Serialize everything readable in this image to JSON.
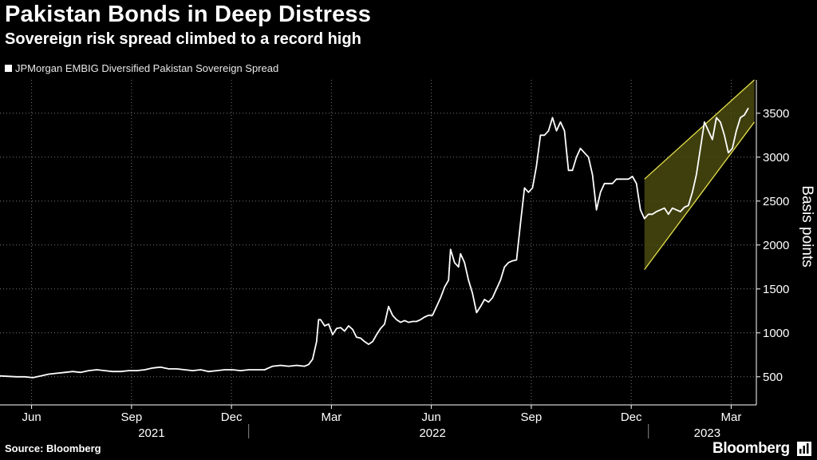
{
  "header": {
    "title": "Pakistan Bonds in Deep Distress",
    "subtitle": "Sovereign risk spread climbed to a record high"
  },
  "legend": {
    "label": "JPMorgan EMBIG Diversified Pakistan Sovereign Spread",
    "color": "#ffffff"
  },
  "footer": {
    "source": "Source: Bloomberg",
    "brand": "Bloomberg"
  },
  "colors": {
    "line": "#ffffff",
    "channel": "#e5e04a",
    "channel_fill": "#4a4a10",
    "grid": "#777777",
    "background": "#000000"
  },
  "chart_data": {
    "type": "line",
    "title": "Pakistan Bonds in Deep Distress",
    "subtitle": "Sovereign risk spread climbed to a record high",
    "ylabel": "Basis points",
    "xlabel": "",
    "ylim": [
      180,
      3880
    ],
    "yticks": [
      500,
      1000,
      1500,
      2000,
      2500,
      3000,
      3500
    ],
    "xlim": [
      2021.338,
      2023.23
    ],
    "xticks": [
      {
        "label": "Jun",
        "x": 2021.417
      },
      {
        "label": "Sep",
        "x": 2021.667
      },
      {
        "label": "Dec",
        "x": 2021.917
      },
      {
        "label": "Mar",
        "x": 2022.167
      },
      {
        "label": "Jun",
        "x": 2022.417
      },
      {
        "label": "Sep",
        "x": 2022.667
      },
      {
        "label": "Dec",
        "x": 2022.917
      },
      {
        "label": "Mar",
        "x": 2023.167
      }
    ],
    "year_labels": [
      {
        "label": "2021",
        "x": 2021.717
      },
      {
        "label": "2022",
        "x": 2022.42
      },
      {
        "label": "2023",
        "x": 2023.107
      }
    ],
    "year_separators": [
      2021.96,
      2022.96
    ],
    "grid": true,
    "series": [
      {
        "name": "JPMorgan EMBIG Diversified Pakistan Sovereign Spread",
        "points": [
          [
            2021.338,
            510
          ],
          [
            2021.36,
            505
          ],
          [
            2021.38,
            500
          ],
          [
            2021.4,
            500
          ],
          [
            2021.42,
            490
          ],
          [
            2021.44,
            510
          ],
          [
            2021.46,
            530
          ],
          [
            2021.48,
            540
          ],
          [
            2021.5,
            550
          ],
          [
            2021.52,
            560
          ],
          [
            2021.54,
            550
          ],
          [
            2021.56,
            570
          ],
          [
            2021.58,
            580
          ],
          [
            2021.6,
            570
          ],
          [
            2021.62,
            560
          ],
          [
            2021.64,
            560
          ],
          [
            2021.66,
            570
          ],
          [
            2021.68,
            570
          ],
          [
            2021.7,
            580
          ],
          [
            2021.72,
            600
          ],
          [
            2021.74,
            610
          ],
          [
            2021.76,
            590
          ],
          [
            2021.78,
            590
          ],
          [
            2021.8,
            580
          ],
          [
            2021.82,
            570
          ],
          [
            2021.84,
            580
          ],
          [
            2021.86,
            560
          ],
          [
            2021.88,
            570
          ],
          [
            2021.9,
            580
          ],
          [
            2021.92,
            580
          ],
          [
            2021.94,
            570
          ],
          [
            2021.96,
            580
          ],
          [
            2021.98,
            580
          ],
          [
            2022.0,
            580
          ],
          [
            2022.02,
            620
          ],
          [
            2022.04,
            630
          ],
          [
            2022.06,
            620
          ],
          [
            2022.08,
            630
          ],
          [
            2022.1,
            620
          ],
          [
            2022.11,
            640
          ],
          [
            2022.12,
            700
          ],
          [
            2022.13,
            900
          ],
          [
            2022.135,
            1150
          ],
          [
            2022.14,
            1150
          ],
          [
            2022.15,
            1080
          ],
          [
            2022.16,
            1100
          ],
          [
            2022.17,
            980
          ],
          [
            2022.18,
            1050
          ],
          [
            2022.19,
            1060
          ],
          [
            2022.2,
            1020
          ],
          [
            2022.21,
            1080
          ],
          [
            2022.22,
            1040
          ],
          [
            2022.23,
            950
          ],
          [
            2022.24,
            940
          ],
          [
            2022.25,
            900
          ],
          [
            2022.26,
            870
          ],
          [
            2022.27,
            900
          ],
          [
            2022.28,
            980
          ],
          [
            2022.29,
            1050
          ],
          [
            2022.3,
            1100
          ],
          [
            2022.31,
            1300
          ],
          [
            2022.32,
            1200
          ],
          [
            2022.33,
            1150
          ],
          [
            2022.34,
            1120
          ],
          [
            2022.35,
            1140
          ],
          [
            2022.36,
            1120
          ],
          [
            2022.37,
            1130
          ],
          [
            2022.38,
            1130
          ],
          [
            2022.39,
            1150
          ],
          [
            2022.4,
            1180
          ],
          [
            2022.41,
            1200
          ],
          [
            2022.42,
            1200
          ],
          [
            2022.43,
            1300
          ],
          [
            2022.44,
            1400
          ],
          [
            2022.45,
            1520
          ],
          [
            2022.46,
            1600
          ],
          [
            2022.465,
            1950
          ],
          [
            2022.475,
            1800
          ],
          [
            2022.485,
            1750
          ],
          [
            2022.49,
            1900
          ],
          [
            2022.5,
            1800
          ],
          [
            2022.51,
            1600
          ],
          [
            2022.52,
            1450
          ],
          [
            2022.53,
            1230
          ],
          [
            2022.54,
            1300
          ],
          [
            2022.55,
            1380
          ],
          [
            2022.56,
            1350
          ],
          [
            2022.57,
            1400
          ],
          [
            2022.58,
            1500
          ],
          [
            2022.59,
            1600
          ],
          [
            2022.6,
            1750
          ],
          [
            2022.61,
            1800
          ],
          [
            2022.62,
            1820
          ],
          [
            2022.63,
            1830
          ],
          [
            2022.64,
            2250
          ],
          [
            2022.65,
            2650
          ],
          [
            2022.66,
            2600
          ],
          [
            2022.67,
            2650
          ],
          [
            2022.68,
            2900
          ],
          [
            2022.69,
            3250
          ],
          [
            2022.7,
            3250
          ],
          [
            2022.71,
            3300
          ],
          [
            2022.72,
            3450
          ],
          [
            2022.73,
            3300
          ],
          [
            2022.74,
            3400
          ],
          [
            2022.75,
            3300
          ],
          [
            2022.76,
            2850
          ],
          [
            2022.77,
            2850
          ],
          [
            2022.78,
            3000
          ],
          [
            2022.79,
            3100
          ],
          [
            2022.8,
            3050
          ],
          [
            2022.81,
            3000
          ],
          [
            2022.82,
            2800
          ],
          [
            2022.83,
            2400
          ],
          [
            2022.84,
            2600
          ],
          [
            2022.85,
            2700
          ],
          [
            2022.86,
            2700
          ],
          [
            2022.87,
            2700
          ],
          [
            2022.88,
            2750
          ],
          [
            2022.89,
            2750
          ],
          [
            2022.9,
            2750
          ],
          [
            2022.91,
            2750
          ],
          [
            2022.92,
            2780
          ],
          [
            2022.93,
            2700
          ],
          [
            2022.94,
            2400
          ],
          [
            2022.95,
            2300
          ],
          [
            2022.96,
            2350
          ],
          [
            2022.97,
            2350
          ],
          [
            2022.98,
            2380
          ],
          [
            2022.99,
            2400
          ],
          [
            2023.0,
            2420
          ],
          [
            2023.01,
            2350
          ],
          [
            2023.02,
            2420
          ],
          [
            2023.03,
            2400
          ],
          [
            2023.04,
            2380
          ],
          [
            2023.05,
            2430
          ],
          [
            2023.06,
            2450
          ],
          [
            2023.07,
            2600
          ],
          [
            2023.08,
            2800
          ],
          [
            2023.09,
            3100
          ],
          [
            2023.1,
            3400
          ],
          [
            2023.11,
            3300
          ],
          [
            2023.12,
            3200
          ],
          [
            2023.13,
            3450
          ],
          [
            2023.14,
            3400
          ],
          [
            2023.15,
            3250
          ],
          [
            2023.16,
            3050
          ],
          [
            2023.17,
            3100
          ],
          [
            2023.18,
            3300
          ],
          [
            2023.19,
            3450
          ],
          [
            2023.2,
            3480
          ],
          [
            2023.21,
            3560
          ]
        ]
      }
    ],
    "annotations": [
      {
        "type": "channel",
        "description": "Rising trend channel",
        "upper": [
          [
            2022.95,
            2750
          ],
          [
            2023.225,
            3880
          ]
        ],
        "lower": [
          [
            2022.95,
            1720
          ],
          [
            2023.225,
            3400
          ]
        ]
      }
    ]
  }
}
